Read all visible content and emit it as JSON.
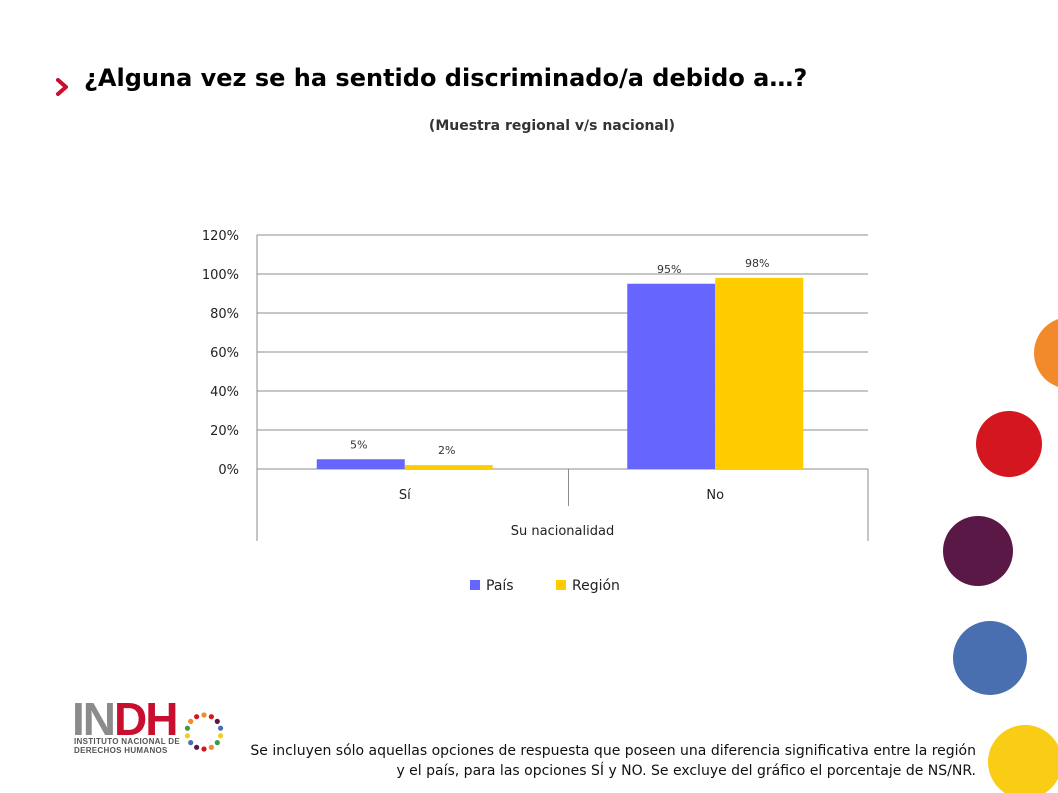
{
  "header": {
    "title": "¿Alguna vez se ha sentido discriminado/a debido a…?",
    "subtitle": "(Muestra regional v/s nacional)"
  },
  "chart_data": {
    "type": "bar",
    "categories": [
      "Sí",
      "No"
    ],
    "group_label": "Su nacionalidad",
    "series": [
      {
        "name": "País",
        "values": [
          5,
          95
        ],
        "labels": [
          "5%",
          "95%"
        ],
        "color": "#6666ff"
      },
      {
        "name": "Región",
        "values": [
          2,
          98
        ],
        "labels": [
          "2%",
          "98%"
        ],
        "color": "#ffcc00"
      }
    ],
    "ylim": [
      0,
      120
    ],
    "yticks": [
      "0%",
      "20%",
      "40%",
      "60%",
      "80%",
      "100%",
      "120%"
    ],
    "grid": true,
    "legend_position": "bottom"
  },
  "footnote": "Se incluyen sólo aquellas opciones de respuesta que poseen una diferencia significativa entre la región y el país, para las opciones SÍ y NO. Se excluye del gráfico el porcentaje de NS/NR.",
  "logo": {
    "main_gray": "IN",
    "main_red": "DH",
    "line1": "INSTITUTO NACIONAL DE",
    "line2": "DERECHOS HUMANOS"
  },
  "decor": {
    "circle_colors": [
      "#f28a2c",
      "#d4171f",
      "#5a1846",
      "#4a6fb0",
      "#f9cc16"
    ]
  }
}
